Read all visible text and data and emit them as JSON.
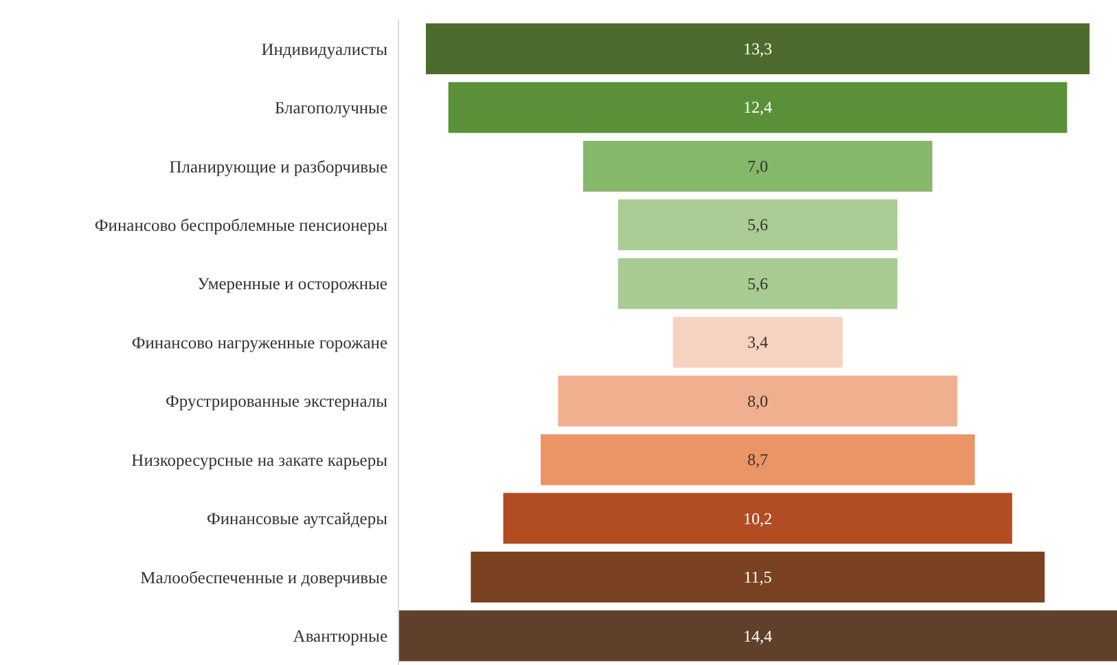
{
  "chart_data": {
    "type": "other",
    "categories": [
      "Индивидуалисты",
      "Благополучные",
      "Планирующие и разборчивые",
      "Финансово беспроблемные пенсионеры",
      "Умеренные и осторожные",
      "Финансово нагруженные горожане",
      "Фрустрированные экстерналы",
      "Низкоресурсные на закате карьеры",
      "Финансовые аутсайдеры",
      "Малообеспеченные и доверчивые",
      "Авантюрные"
    ],
    "values": [
      13.3,
      12.4,
      7.0,
      5.6,
      5.6,
      3.4,
      8.0,
      8.7,
      10.2,
      11.5,
      14.4
    ],
    "value_labels": [
      "13,3",
      "12,4",
      "7,0",
      "5,6",
      "5,6",
      "3,4",
      "8,0",
      "8,7",
      "10,2",
      "11,5",
      "14,4"
    ],
    "colors": [
      "#4e6b2e",
      "#5a9138",
      "#86b86b",
      "#abcc94",
      "#a7cb91",
      "#f5d3c0",
      "#f0b08f",
      "#eb9566",
      "#b24c22",
      "#7a4220",
      "#5e402b"
    ]
  }
}
